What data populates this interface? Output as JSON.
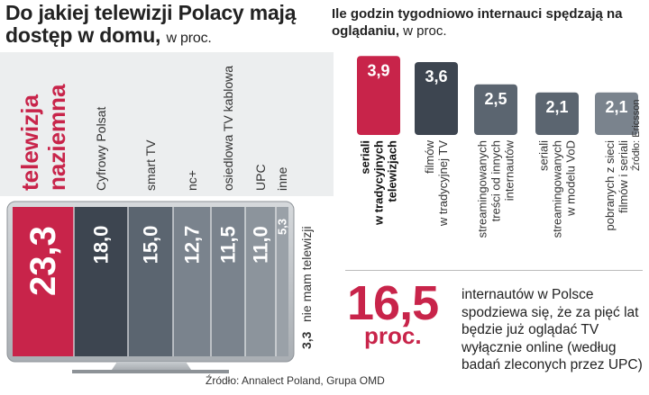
{
  "left": {
    "title": "Do jakiej telewizji Polacy mają dostęp w domu,",
    "unit": "w proc.",
    "source": "Źródło: Annalect Poland, Grupa OMD"
  },
  "right": {
    "title": "Ile godzin tygodniowo internauci spędzają na oglądaniu,",
    "unit": "w proc.",
    "source": "Źródło: Ericsson"
  },
  "highlight": {
    "number": "16,5",
    "unit": "proc.",
    "text": "internautów w Polsce spodziewa się, że za pięć lat będzie już oglądać TV wyłącznie online (według badań zleconych przez UPC)"
  },
  "colors": {
    "accent": "#c8244a",
    "dark": "#3d4550",
    "mid": "#5b6570",
    "light": "#7a838d"
  },
  "chart_data": [
    {
      "type": "bar",
      "title": "Do jakiej telewizji Polacy mają dostęp w domu, w proc.",
      "categories": [
        "telewizja naziemna",
        "Cyfrowy Polsat",
        "smart TV",
        "nc+",
        "osiedlowa TV kablowa",
        "UPC",
        "inne",
        "nie mam telewizji"
      ],
      "values": [
        23.3,
        18.0,
        15.0,
        12.7,
        11.5,
        11.0,
        5.3,
        3.3
      ],
      "value_labels": [
        "23,3",
        "18,0",
        "15,0",
        "12,7",
        "11,5",
        "11,0",
        "5,3",
        "3,3"
      ],
      "labels_display": [
        [
          "telewizja",
          "naziemna"
        ],
        [
          "Cyfrowy Polsat"
        ],
        [
          "smart TV"
        ],
        [
          "nc+"
        ],
        [
          "osiedlowa TV kablowa"
        ],
        [
          "UPC"
        ],
        [
          "inne"
        ],
        [
          "nie mam telewizji"
        ]
      ]
    },
    {
      "type": "bar",
      "title": "Ile godzin tygodniowo internauci spędzają na oglądaniu, w proc.",
      "categories": [
        "seriali w tradycyjnych telewizjach",
        "filmów w tradycyjnej TV",
        "streamingowanych treści od innych internautów",
        "seriali streamingowanych w modelu VoD",
        "pobranych z sieci filmów i seriali"
      ],
      "values": [
        3.9,
        3.6,
        2.5,
        2.1,
        2.1
      ],
      "value_labels": [
        "3,9",
        "3,6",
        "2,5",
        "2,1",
        "2,1"
      ],
      "labels_display": [
        [
          "seriali",
          "w tradycyjnych",
          "telewizjach"
        ],
        [
          "filmów",
          "w tradycyjnej TV"
        ],
        [
          "streamingowanych",
          "treści od innych",
          "internautów"
        ],
        [
          "seriali",
          "streamingowanych",
          "w modelu VoD"
        ],
        [
          "pobranych z sieci",
          "filmów i seriali"
        ]
      ],
      "ylim": [
        0,
        4
      ]
    }
  ]
}
